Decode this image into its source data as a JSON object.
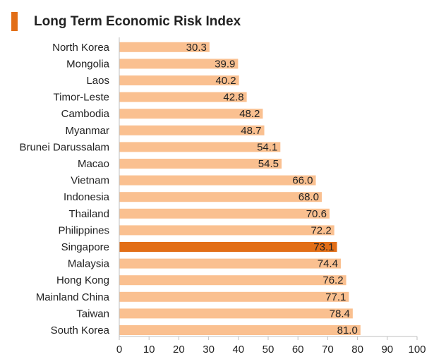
{
  "chart_data": {
    "type": "bar",
    "orientation": "horizontal",
    "title": "Long Term Economic Risk Index",
    "categories": [
      "North Korea",
      "Mongolia",
      "Laos",
      "Timor-Leste",
      "Cambodia",
      "Myanmar",
      "Brunei Darussalam",
      "Macao",
      "Vietnam",
      "Indonesia",
      "Thailand",
      "Philippines",
      "Singapore",
      "Malaysia",
      "Hong Kong",
      "Mainland China",
      "Taiwan",
      "South Korea"
    ],
    "values": [
      30.3,
      39.9,
      40.2,
      42.8,
      48.2,
      48.7,
      54.1,
      54.5,
      66.0,
      68.0,
      70.6,
      72.2,
      73.1,
      74.4,
      76.2,
      77.1,
      78.4,
      81.0
    ],
    "value_labels": [
      "30.3",
      "39.9",
      "40.2",
      "42.8",
      "48.2",
      "48.7",
      "54.1",
      "54.5",
      "66.0",
      "68.0",
      "70.6",
      "72.2",
      "73.1",
      "74.4",
      "76.2",
      "77.1",
      "78.4",
      "81.0"
    ],
    "highlight": "Singapore",
    "xlim": [
      0,
      100
    ],
    "xticks": [
      "0",
      "10",
      "20",
      "30",
      "40",
      "50",
      "60",
      "70",
      "80",
      "90",
      "100"
    ],
    "xlabel": "",
    "ylabel": "",
    "grid": false,
    "colors": {
      "bar": "#fac090",
      "highlight": "#e26e17",
      "accent": "#e26e17",
      "axis": "#bfbfbf"
    }
  }
}
